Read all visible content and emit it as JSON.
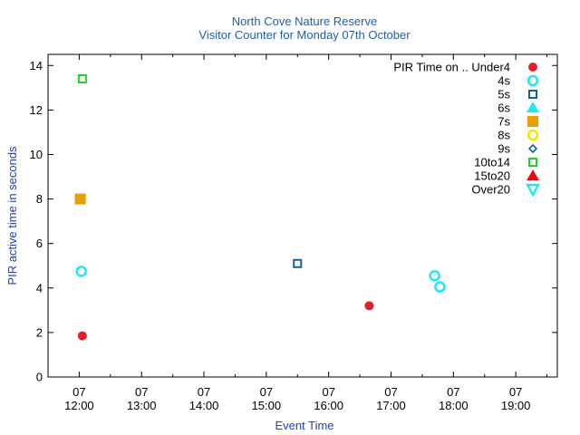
{
  "chart_data": {
    "type": "scatter",
    "title": "North Cove Nature Reserve",
    "subtitle": "Visitor Counter for Monday 07th October",
    "xlabel": "Event Time",
    "ylabel": "PIR active time in seconds",
    "xlim": [
      "07 11:30",
      "07 19:40"
    ],
    "ylim": [
      0,
      14.5
    ],
    "y_ticks": [
      "0",
      "2",
      "4",
      "6",
      "8",
      "10",
      "12",
      "14"
    ],
    "x_ticks": [
      {
        "day": "07",
        "time": "12:00"
      },
      {
        "day": "07",
        "time": "13:00"
      },
      {
        "day": "07",
        "time": "14:00"
      },
      {
        "day": "07",
        "time": "15:00"
      },
      {
        "day": "07",
        "time": "16:00"
      },
      {
        "day": "07",
        "time": "17:00"
      },
      {
        "day": "07",
        "time": "18:00"
      },
      {
        "day": "07",
        "time": "19:00"
      }
    ],
    "grid": false,
    "legend_position": "top-right",
    "legend_title": "PIR Time on ..",
    "series": [
      {
        "name": "Under4",
        "marker": "filled-circle",
        "color": "#e0202a",
        "points": [
          {
            "x": "07 12:03",
            "y": 1.85
          },
          {
            "x": "07 16:39",
            "y": 3.2
          }
        ]
      },
      {
        "name": "4s",
        "marker": "open-circle",
        "color": "#20e8f0",
        "points": [
          {
            "x": "07 12:02",
            "y": 4.75
          },
          {
            "x": "07 17:42",
            "y": 4.55
          },
          {
            "x": "07 17:47",
            "y": 4.05
          }
        ]
      },
      {
        "name": "5s",
        "marker": "open-square",
        "color": "#1060b0",
        "points": [
          {
            "x": "07 15:30",
            "y": 5.1
          }
        ]
      },
      {
        "name": "6s",
        "marker": "filled-triangle-up",
        "color": "#20e8f0",
        "points": []
      },
      {
        "name": "7s",
        "marker": "filled-square",
        "color": "#e8a000",
        "points": [
          {
            "x": "07 12:01",
            "y": 8.0
          }
        ]
      },
      {
        "name": "8s",
        "marker": "open-circle",
        "color": "#f0e800",
        "points": []
      },
      {
        "name": "9s",
        "marker": "open-diamond",
        "color": "#1060b0",
        "points": []
      },
      {
        "name": "10to14",
        "marker": "open-square",
        "color": "#20d020",
        "points": [
          {
            "x": "07 12:03",
            "y": 13.4
          }
        ]
      },
      {
        "name": "15to20",
        "marker": "filled-triangle-up",
        "color": "#e01010",
        "points": []
      },
      {
        "name": "Over20",
        "marker": "open-triangle-down",
        "color": "#20e8f0",
        "points": []
      }
    ]
  }
}
